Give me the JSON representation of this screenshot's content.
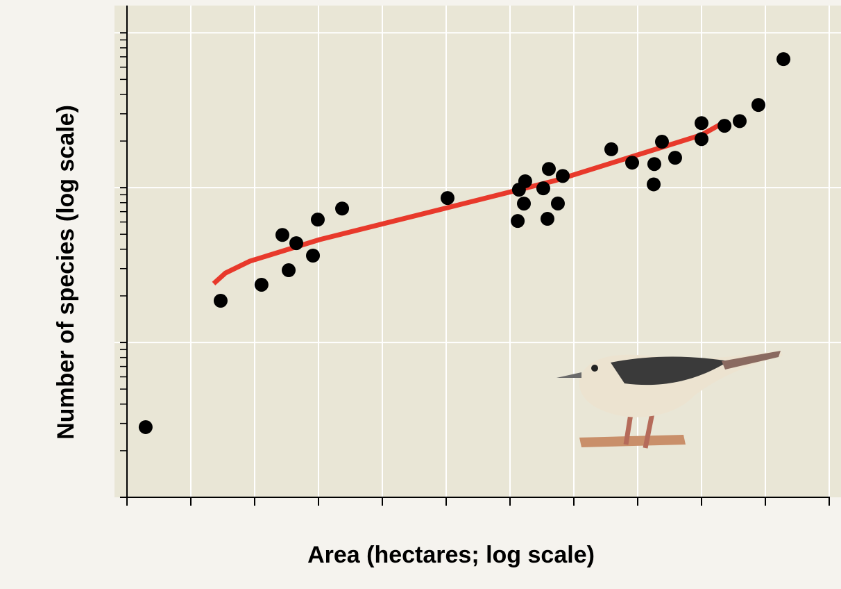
{
  "chart_data": {
    "type": "scatter",
    "x_label": "Area (hectares; log scale)",
    "y_label": "Number of species (log scale)",
    "xscale": "log",
    "yscale": "log",
    "xlim": [
      1,
      100000000000
    ],
    "ylim": [
      1,
      1500
    ],
    "xticks": [
      1,
      10,
      100,
      1000,
      10000,
      100000,
      1000000,
      10000000,
      100000000,
      1000000000,
      10000000000,
      100000000000
    ],
    "yticks": [
      1,
      10,
      100,
      1000
    ],
    "y_minor_ticks": true,
    "grid": true,
    "series": [
      {
        "kind": "points",
        "color": "#000000",
        "x": [
          1.96,
          29.3,
          128,
          272,
          341,
          449,
          819,
          975,
          2344,
          105000,
          1320000,
          1380000,
          1730000,
          1650000,
          3320000,
          3860000,
          4060000,
          5620000,
          6700000,
          38600000,
          81900000,
          178000000,
          182000000,
          240000000,
          386000000,
          1000000000,
          1000000000,
          2290000000,
          3960000000,
          7780000000,
          19200000000
        ],
        "values": [
          2.84,
          18.6,
          23.6,
          49.5,
          29.3,
          43.8,
          36.4,
          62.2,
          73.3,
          85.7,
          60.9,
          97,
          110,
          78.9,
          99,
          62.9,
          132,
          79,
          119,
          177,
          145,
          105,
          142,
          198,
          156,
          261,
          206,
          251,
          269,
          342,
          676
        ]
      },
      {
        "kind": "line",
        "color": "#e8392b",
        "x": [
          22.8,
          34.9,
          83.9,
          1026,
          92700,
          5090000,
          1000000000,
          2070000000
        ],
        "values": [
          24.0,
          28.1,
          33.5,
          46.1,
          73.3,
          111,
          219,
          259
        ]
      }
    ]
  }
}
